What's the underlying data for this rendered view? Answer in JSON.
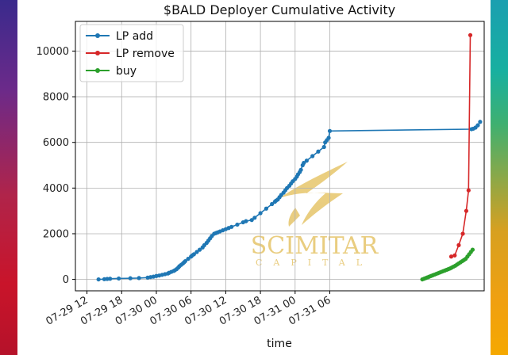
{
  "chart_data": {
    "type": "line",
    "title": "$BALD Deployer Cumulative Activity",
    "xlabel": "time",
    "ylabel": "",
    "x_ticks": [
      "07-29 12",
      "07-29 18",
      "07-30 00",
      "07-30 06",
      "07-30 12",
      "07-30 18",
      "07-31 00",
      "07-31 06"
    ],
    "y_ticks": [
      "0",
      "2000",
      "4000",
      "6000",
      "8000",
      "10000"
    ],
    "xlim": [
      10.0,
      80.7
    ],
    "ylim": [
      -500,
      11300
    ],
    "grid": true,
    "legend_position": "top-left",
    "series": [
      {
        "name": "LP add",
        "color": "#1f77b4",
        "x": [
          14.0,
          15.0,
          15.5,
          16.0,
          17.5,
          19.5,
          21.0,
          22.5,
          23.0,
          23.5,
          24.0,
          24.5,
          25.0,
          25.5,
          26.0,
          26.2,
          26.6,
          27.0,
          27.2,
          27.5,
          27.8,
          28.0,
          28.3,
          28.6,
          28.8,
          29.0,
          29.5,
          30.0,
          30.2,
          30.5,
          31.0,
          31.5,
          32.0,
          32.3,
          32.7,
          33.0,
          33.3,
          33.6,
          34.0,
          34.3,
          34.6,
          35.0,
          35.5,
          36.0,
          36.5,
          37.0,
          38.0,
          39.0,
          39.5,
          40.5,
          41.0,
          42.0,
          43.0,
          44.0,
          44.5,
          44.7,
          45.0,
          45.3,
          45.6,
          46.0,
          46.3,
          46.6,
          47.0,
          47.3,
          47.6,
          48.0,
          48.3,
          48.5,
          48.8,
          49.0,
          49.3,
          49.5,
          50.0,
          51.0,
          52.0,
          53.0,
          53.2,
          53.5,
          53.8,
          54.0,
          78.5,
          78.8,
          79.2,
          79.6,
          80.0
        ],
        "y": [
          0,
          10,
          20,
          30,
          40,
          50,
          60,
          80,
          100,
          120,
          150,
          170,
          200,
          230,
          260,
          290,
          330,
          370,
          400,
          450,
          520,
          580,
          640,
          700,
          750,
          800,
          900,
          1000,
          1050,
          1100,
          1200,
          1300,
          1400,
          1500,
          1600,
          1700,
          1800,
          1900,
          2000,
          2030,
          2060,
          2100,
          2150,
          2200,
          2250,
          2300,
          2400,
          2500,
          2550,
          2600,
          2700,
          2900,
          3100,
          3300,
          3400,
          3450,
          3500,
          3600,
          3700,
          3800,
          3900,
          4000,
          4100,
          4200,
          4300,
          4400,
          4500,
          4600,
          4700,
          4800,
          5000,
          5100,
          5200,
          5400,
          5600,
          5800,
          6000,
          6100,
          6200,
          6500,
          6580,
          6600,
          6650,
          6750,
          6900
        ]
      },
      {
        "name": "LP remove",
        "color": "#d62728",
        "x": [
          75.0,
          75.6,
          76.3,
          77.0,
          77.6,
          78.0,
          78.3
        ],
        "y": [
          1000,
          1050,
          1500,
          2000,
          3000,
          3900,
          10700
        ]
      },
      {
        "name": "buy",
        "color": "#2ca02c",
        "x": [
          70.0,
          70.3,
          70.6,
          70.9,
          71.2,
          71.5,
          71.8,
          72.1,
          72.4,
          72.7,
          73.0,
          73.3,
          73.6,
          73.9,
          74.2,
          74.5,
          74.8,
          75.1,
          75.4,
          75.7,
          76.0,
          76.3,
          76.6,
          76.9,
          77.2,
          77.5,
          77.8,
          78.1,
          78.4,
          78.7
        ],
        "y": [
          0,
          30,
          60,
          90,
          120,
          150,
          180,
          210,
          240,
          270,
          300,
          330,
          360,
          390,
          420,
          450,
          480,
          520,
          560,
          600,
          650,
          700,
          750,
          800,
          850,
          900,
          1000,
          1100,
          1200,
          1300
        ]
      }
    ]
  },
  "watermark": {
    "name": "SCIMITAR",
    "sub": "CAPITAL",
    "color": "#e6c56a"
  }
}
